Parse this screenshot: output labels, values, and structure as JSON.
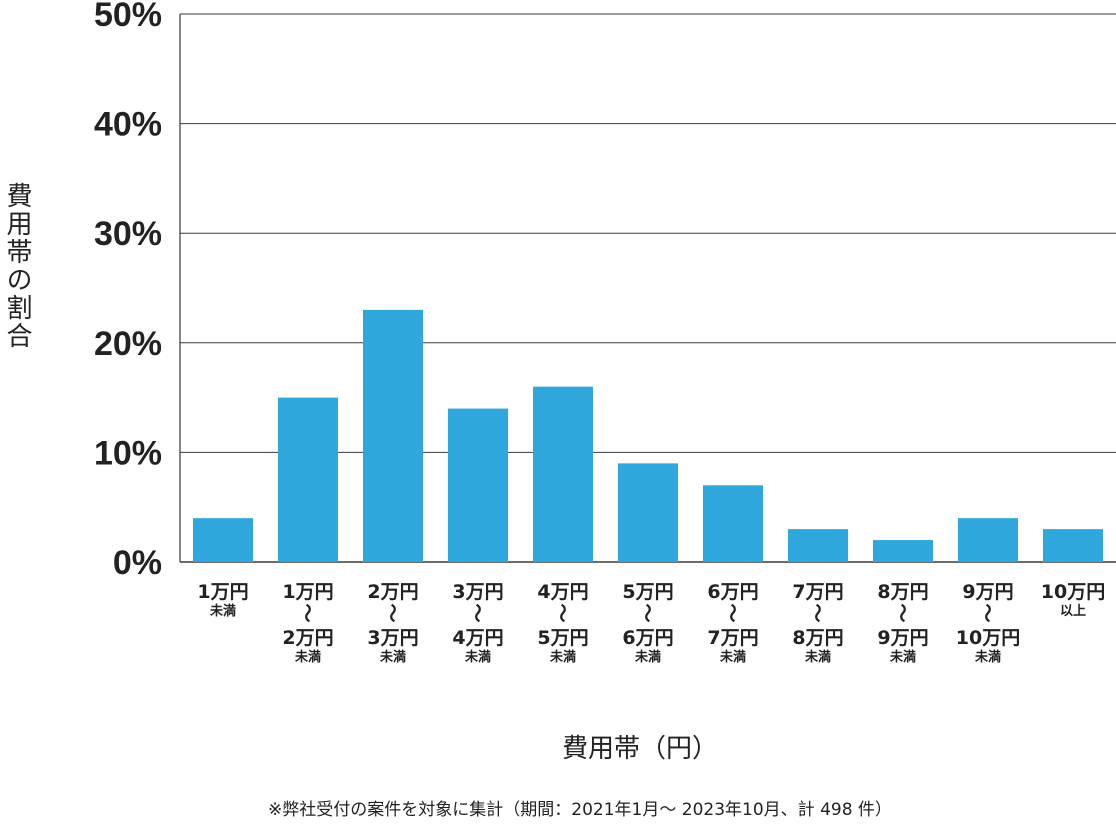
{
  "chart_data": {
    "type": "bar",
    "ylabel": "費用帯の割合",
    "xlabel": "費用帯（円）",
    "ylim": [
      0,
      50
    ],
    "yticks": [
      "0%",
      "10%",
      "20%",
      "30%",
      "40%",
      "50%"
    ],
    "grid": true,
    "bar_color": "#2fa7dd",
    "categories": [
      {
        "main": [
          "1万円"
        ],
        "sub": "未満"
      },
      {
        "main": [
          "1万円",
          "〜",
          "2万円"
        ],
        "sub": "未満"
      },
      {
        "main": [
          "2万円",
          "〜",
          "3万円"
        ],
        "sub": "未満"
      },
      {
        "main": [
          "3万円",
          "〜",
          "4万円"
        ],
        "sub": "未満"
      },
      {
        "main": [
          "4万円",
          "〜",
          "5万円"
        ],
        "sub": "未満"
      },
      {
        "main": [
          "5万円",
          "〜",
          "6万円"
        ],
        "sub": "未満"
      },
      {
        "main": [
          "6万円",
          "〜",
          "7万円"
        ],
        "sub": "未満"
      },
      {
        "main": [
          "7万円",
          "〜",
          "8万円"
        ],
        "sub": "未満"
      },
      {
        "main": [
          "8万円",
          "〜",
          "9万円"
        ],
        "sub": "未満"
      },
      {
        "main": [
          "9万円",
          "〜",
          "10万円"
        ],
        "sub": "未満"
      },
      {
        "main": [
          "10万円"
        ],
        "sub": "以上"
      }
    ],
    "values": [
      4,
      15,
      23,
      14,
      16,
      9,
      7,
      3,
      2,
      4,
      3
    ]
  },
  "footnote": "※弊社受付の案件を対象に集計（期間：2021年1月～ 2023年10月、計 498 件）"
}
